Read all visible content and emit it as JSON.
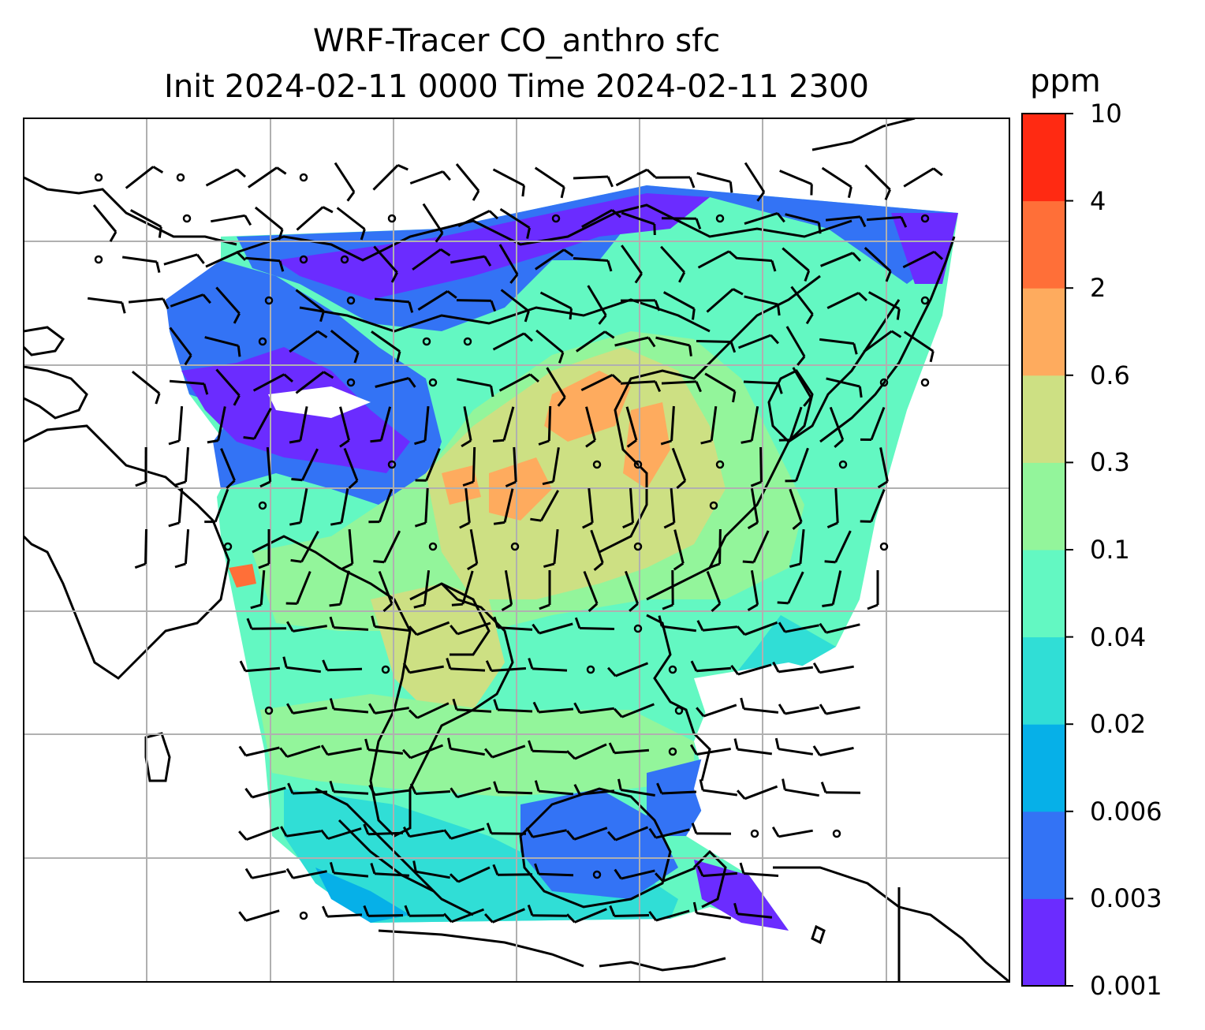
{
  "title": {
    "line1": "WRF-Tracer CO_anthro sfc",
    "line2": "Init 2024-02-11 0000 Time 2024-02-11 2300"
  },
  "colorbar": {
    "unit": "ppm",
    "levels": [
      "0.001",
      "0.003",
      "0.006",
      "0.02",
      "0.02",
      "0.04",
      "0.1",
      "0.3",
      "0.6",
      "2",
      "4",
      "10"
    ],
    "tick_labels": [
      "0.001",
      "0.003",
      "0.006",
      "0.02",
      "0.04",
      "0.1",
      "0.3",
      "0.6",
      "2",
      "4",
      "10"
    ],
    "colors": [
      "#6b2cff",
      "#3373f5",
      "#06b0e8",
      "#30ded6",
      "#63f8c2",
      "#93f59b",
      "#cde083",
      "#feab5e",
      "#ff6f38",
      "#ff2a12"
    ]
  },
  "map": {
    "projection": "lat-lon",
    "gridlines": true,
    "coastlines": true,
    "wind_barbs": true,
    "field": "CO_anthro",
    "level": "sfc"
  }
}
